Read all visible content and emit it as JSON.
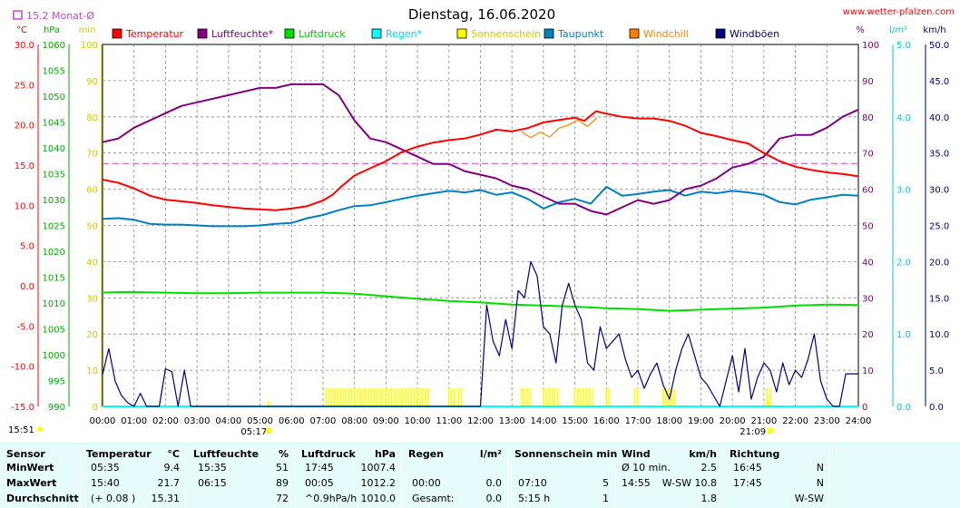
{
  "title": "Dienstag, 16.06.2020",
  "website": "www.wetter-pfalzen.com",
  "avg_label": "15.2 Monat-Ø",
  "colors": {
    "temperature": "#ff0000",
    "humidity": "#800080",
    "pressure": "#00dd00",
    "rain": "#00ffff",
    "sunshine": "#ffff00",
    "dewpoint": "#0080c0",
    "windchill": "#ff8000",
    "gusts": "#000080",
    "grid": "#888888",
    "month_avg": "#cc44cc",
    "stats_bg": "#e6fcfc"
  },
  "legend": [
    {
      "label": "Temperatur",
      "color": "#ff0000",
      "text_color": "#ff0000"
    },
    {
      "label": "Luftfeuchte*",
      "color": "#800080",
      "text_color": "#800080"
    },
    {
      "label": "Luftdruck",
      "color": "#00dd00",
      "text_color": "#00cc00"
    },
    {
      "label": "Regen*",
      "color": "#00ffff",
      "text_color": "#00dddd"
    },
    {
      "label": "Sonnenschein",
      "color": "#ffff00",
      "text_color": "#cccc00"
    },
    {
      "label": "Taupunkt",
      "color": "#0080c0",
      "text_color": "#0080c0"
    },
    {
      "label": "Windchill",
      "color": "#ff8000",
      "text_color": "#ff8000"
    },
    {
      "label": "Windböen",
      "color": "#000080",
      "text_color": "#000080"
    }
  ],
  "axis_units": {
    "temp": "°C",
    "pressure": "hPa",
    "sun": "min",
    "humidity": "%",
    "rain": "l/m²",
    "wind": "km/h"
  },
  "chart_data": {
    "type": "line",
    "x_ticks": [
      "00:00",
      "01:00",
      "02:00",
      "03:00",
      "04:00",
      "05:00",
      "06:00",
      "07:00",
      "08:00",
      "09:00",
      "10:00",
      "11:00",
      "12:00",
      "13:00",
      "14:00",
      "15:00",
      "16:00",
      "17:00",
      "18:00",
      "19:00",
      "20:00",
      "21:00",
      "22:00",
      "23:00",
      "24:00"
    ],
    "xlim": [
      0,
      24
    ],
    "sunrise": "05:17",
    "sunset": "21:09",
    "current_time": "15:51",
    "axes": {
      "temperature": {
        "ticks": [
          "30.0",
          "25.0",
          "20.0",
          "15.0",
          "10.0",
          "5.0",
          "0.0",
          "-5.0",
          "-10.0",
          "-15.0"
        ],
        "ylim": [
          -15,
          30
        ]
      },
      "pressure": {
        "ticks": [
          "1060",
          "1055",
          "1050",
          "1045",
          "1040",
          "1035",
          "1030",
          "1025",
          "1020",
          "1015",
          "1010",
          "1005",
          "1000",
          "995",
          "990"
        ],
        "ylim": [
          990,
          1060
        ]
      },
      "sunshine": {
        "ticks": [
          "100",
          "90",
          "80",
          "70",
          "60",
          "50",
          "40",
          "30",
          "20",
          "10",
          "0"
        ],
        "ylim": [
          0,
          100
        ]
      },
      "humidity": {
        "ticks": [
          "100",
          "90",
          "80",
          "70",
          "60",
          "50",
          "40",
          "30",
          "20",
          "10",
          "0"
        ],
        "ylim": [
          0,
          100
        ]
      },
      "rain": {
        "ticks": [
          "5.0",
          "4.0",
          "3.0",
          "2.0",
          "1.0",
          "0.0"
        ],
        "ylim": [
          0,
          5
        ]
      },
      "wind": {
        "ticks": [
          "50.0",
          "45.0",
          "40.0",
          "35.0",
          "30.0",
          "25.0",
          "20.0",
          "15.0",
          "10.0",
          "5.0",
          "0.0"
        ],
        "ylim": [
          0,
          50
        ]
      }
    },
    "month_avg_temp": 15.2,
    "series": [
      {
        "name": "Temperatur",
        "axis": "temperature",
        "color": "#ff0000",
        "x": [
          0,
          0.5,
          1,
          1.5,
          2,
          2.5,
          3,
          3.5,
          4,
          4.5,
          5,
          5.5,
          6,
          6.5,
          7,
          7.3,
          7.6,
          8,
          8.5,
          9,
          9.5,
          10,
          10.5,
          11,
          11.5,
          12,
          12.5,
          13,
          13.5,
          14,
          14.5,
          15,
          15.3,
          15.67,
          16,
          16.5,
          17,
          17.5,
          18,
          18.5,
          19,
          19.5,
          20,
          20.5,
          21,
          21.5,
          22,
          22.5,
          23,
          23.5,
          24
        ],
        "y": [
          13.2,
          12.8,
          12.1,
          11.2,
          10.7,
          10.5,
          10.3,
          10.0,
          9.8,
          9.6,
          9.5,
          9.4,
          9.6,
          9.9,
          10.6,
          11.3,
          12.4,
          13.7,
          14.6,
          15.5,
          16.6,
          17.3,
          17.8,
          18.1,
          18.3,
          18.8,
          19.4,
          19.2,
          19.6,
          20.3,
          20.6,
          20.9,
          20.5,
          21.7,
          21.4,
          21.0,
          20.8,
          20.8,
          20.5,
          19.9,
          19.0,
          18.6,
          18.1,
          17.7,
          16.5,
          15.5,
          14.8,
          14.4,
          14.1,
          13.9,
          13.6
        ]
      },
      {
        "name": "Luftfeuchte*",
        "axis": "humidity",
        "color": "#800080",
        "x": [
          0,
          0.5,
          1,
          1.5,
          2,
          2.5,
          3,
          3.5,
          4,
          4.5,
          5,
          5.5,
          6,
          6.5,
          7,
          7.5,
          8,
          8.5,
          9,
          9.5,
          10,
          10.5,
          11,
          11.5,
          12,
          12.5,
          13,
          13.5,
          14,
          14.5,
          15,
          15.5,
          16,
          16.5,
          17,
          17.5,
          18,
          18.5,
          19,
          19.5,
          20,
          20.5,
          21,
          21.5,
          22,
          22.5,
          23,
          23.5,
          24
        ],
        "y": [
          73,
          74,
          77,
          79,
          81,
          83,
          84,
          85,
          86,
          87,
          88,
          88,
          89,
          89,
          89,
          86,
          79,
          74,
          73,
          71,
          69,
          67,
          67,
          65,
          64,
          63,
          61,
          60,
          58,
          56,
          56,
          54,
          53,
          55,
          57,
          56,
          57,
          60,
          61,
          63,
          66,
          67,
          69,
          74,
          75,
          75,
          77,
          80,
          82
        ]
      },
      {
        "name": "Luftdruck",
        "axis": "pressure",
        "color": "#00dd00",
        "x": [
          0,
          0.5,
          1,
          2,
          3,
          4,
          5,
          6,
          7,
          8,
          9,
          10,
          11,
          12,
          13,
          14,
          15,
          16,
          17,
          18,
          19,
          20,
          21,
          22,
          23,
          24
        ],
        "y": [
          1012.0,
          1012.1,
          1012.1,
          1012.0,
          1011.9,
          1011.9,
          1012.0,
          1012.0,
          1012.0,
          1011.8,
          1011.3,
          1010.8,
          1010.4,
          1010.1,
          1009.7,
          1009.5,
          1009.3,
          1009.0,
          1008.8,
          1008.5,
          1008.7,
          1008.9,
          1009.1,
          1009.5,
          1009.7,
          1009.6
        ]
      },
      {
        "name": "Taupunkt",
        "axis": "temperature",
        "color": "#0080c0",
        "x": [
          0,
          0.5,
          1,
          1.5,
          2,
          2.5,
          3,
          3.5,
          4,
          4.5,
          5,
          5.5,
          6,
          6.5,
          7,
          7.5,
          8,
          8.5,
          9,
          9.5,
          10,
          10.5,
          11,
          11.5,
          12,
          12.5,
          13,
          13.5,
          14,
          14.5,
          15,
          15.5,
          16,
          16.5,
          17,
          17.5,
          18,
          18.5,
          19,
          19.5,
          20,
          20.5,
          21,
          21.5,
          22,
          22.5,
          23,
          23.5,
          24
        ],
        "y": [
          8.3,
          8.4,
          8.2,
          7.7,
          7.6,
          7.6,
          7.5,
          7.4,
          7.4,
          7.4,
          7.5,
          7.7,
          7.8,
          8.4,
          8.8,
          9.4,
          9.9,
          10.0,
          10.4,
          10.8,
          11.2,
          11.5,
          11.8,
          11.6,
          11.9,
          11.3,
          11.6,
          10.8,
          9.6,
          10.4,
          10.8,
          10.2,
          12.3,
          11.2,
          11.4,
          11.7,
          11.9,
          11.2,
          11.7,
          11.5,
          11.8,
          11.6,
          11.3,
          10.4,
          10.1,
          10.7,
          11.0,
          11.3,
          11.2
        ]
      },
      {
        "name": "Windchill",
        "axis": "temperature",
        "color": "#ff8000",
        "x": [
          13.3,
          13.6,
          13.9,
          14.2,
          14.5,
          14.8,
          15.1,
          15.4,
          15.7
        ],
        "y": [
          19.2,
          18.4,
          19.1,
          18.5,
          19.6,
          20.0,
          20.6,
          19.8,
          20.9
        ]
      },
      {
        "name": "Windböen",
        "axis": "wind",
        "color": "#000080",
        "x": [
          0,
          0.2,
          0.4,
          0.6,
          0.8,
          1.0,
          1.2,
          1.4,
          1.6,
          1.8,
          2.0,
          2.2,
          2.4,
          2.6,
          2.8,
          3.0,
          3.2,
          3.4,
          3.6,
          3.8,
          4.0,
          11.0,
          12.0,
          12.2,
          12.4,
          12.6,
          12.8,
          13.0,
          13.2,
          13.4,
          13.6,
          13.8,
          14.0,
          14.2,
          14.4,
          14.6,
          14.8,
          15.0,
          15.2,
          15.4,
          15.6,
          15.8,
          16.0,
          16.2,
          16.4,
          16.6,
          16.8,
          17.0,
          17.2,
          17.4,
          17.6,
          17.8,
          18.0,
          18.2,
          18.4,
          18.6,
          18.8,
          19.0,
          19.2,
          19.4,
          19.6,
          19.8,
          20.0,
          20.2,
          20.4,
          20.6,
          20.8,
          21.0,
          21.2,
          21.4,
          21.6,
          21.8,
          22.0,
          22.2,
          22.4,
          22.6,
          22.8,
          23.0,
          23.2,
          23.4,
          23.6,
          23.8,
          24.0
        ],
        "y": [
          4.4,
          8.0,
          3.5,
          1.5,
          0.5,
          0,
          1.8,
          0,
          0,
          0,
          5.2,
          4.8,
          0,
          5.0,
          0,
          0,
          0,
          0,
          0,
          0,
          0,
          0,
          0,
          14.0,
          9.0,
          7.0,
          12.0,
          8.0,
          16.0,
          15.0,
          20.0,
          18.0,
          11.0,
          10.0,
          6.0,
          14.0,
          17.0,
          14.0,
          12.0,
          6.0,
          5.0,
          11.0,
          8.0,
          9.0,
          10.0,
          6.5,
          4.0,
          5.0,
          2.5,
          4.5,
          6.0,
          3.0,
          1.0,
          5.0,
          8.0,
          10.0,
          7.0,
          4.0,
          3.0,
          1.5,
          0,
          3.5,
          7.0,
          2.0,
          8.0,
          1.0,
          4.0,
          6.0,
          5.0,
          2.0,
          6.0,
          3.0,
          5.0,
          4.0,
          6.5,
          10.0,
          3.5,
          1.0,
          0,
          0,
          4.5,
          4.5,
          4.5
        ]
      },
      {
        "name": "Regen*",
        "axis": "rain",
        "color": "#00ffff",
        "x": [
          0,
          24
        ],
        "y": [
          0,
          0
        ]
      }
    ],
    "sunshine_minutes": {
      "axis": "sunshine",
      "color": "#ffff00",
      "intervals": [
        [
          7.1,
          10.4
        ],
        [
          11.0,
          11.2
        ],
        [
          11.3,
          11.4
        ],
        [
          13.3,
          13.6
        ],
        [
          14.0,
          14.5
        ],
        [
          15.0,
          15.6
        ],
        [
          16.0,
          16.1
        ],
        [
          16.9,
          17.0
        ],
        [
          17.8,
          18.2
        ],
        [
          21.1,
          21.2
        ]
      ],
      "value": 5
    },
    "sunshine_markers": [
      {
        "x": 5.28,
        "y": 0
      },
      {
        "x": 21.15,
        "y": 0
      }
    ]
  },
  "stats": {
    "headers": [
      {
        "name": "Sensor"
      },
      {
        "name": "Temperatur",
        "unit": "°C"
      },
      {
        "name": "Luftfeuchte",
        "unit": "%"
      },
      {
        "name": "Luftdruck",
        "unit": "hPa"
      },
      {
        "name": "Regen",
        "unit": "l/m²"
      },
      {
        "name": "Sonnenschein min",
        "unit": ""
      },
      {
        "name": "Wind",
        "unit": "km/h"
      },
      {
        "name": "Richtung",
        "unit": ""
      }
    ],
    "rows": [
      {
        "label": "MinWert",
        "temp_time": "05:35",
        "temp_val": "9.4",
        "hum_time": "15:35",
        "hum_val": "51",
        "press_time": "17:45",
        "press_val": "1007.4",
        "rain_time": "",
        "rain_val": "",
        "sun_time": "",
        "sun_val": "",
        "wind_time": "Ø 10 min.",
        "wind_val": "2.5",
        "dir_time": "16:45",
        "dir_val": "N"
      },
      {
        "label": "MaxWert",
        "temp_time": "15:40",
        "temp_val": "21.7",
        "hum_time": "06:15",
        "hum_val": "89",
        "press_time": "00:05",
        "press_val": "1012.2",
        "rain_time": "00:00",
        "rain_val": "0.0",
        "sun_time": "07:10",
        "sun_val": "5",
        "wind_time": "14:55",
        "wind_val": "W-SW 10.8",
        "dir_time": "17:45",
        "dir_val": "N"
      },
      {
        "label": "Durchschnitt",
        "temp_time": "(+ 0.08 )",
        "temp_val": "15.31",
        "hum_time": "",
        "hum_val": "72",
        "press_time": "^0.9hPa/h",
        "press_val": "1010.0",
        "rain_time": "Gesamt:",
        "rain_val": "0.0",
        "sun_time": "5:15 h",
        "sun_val": "1",
        "wind_time": "",
        "wind_val": "1.8",
        "dir_time": "",
        "dir_val": "W-SW"
      }
    ]
  }
}
